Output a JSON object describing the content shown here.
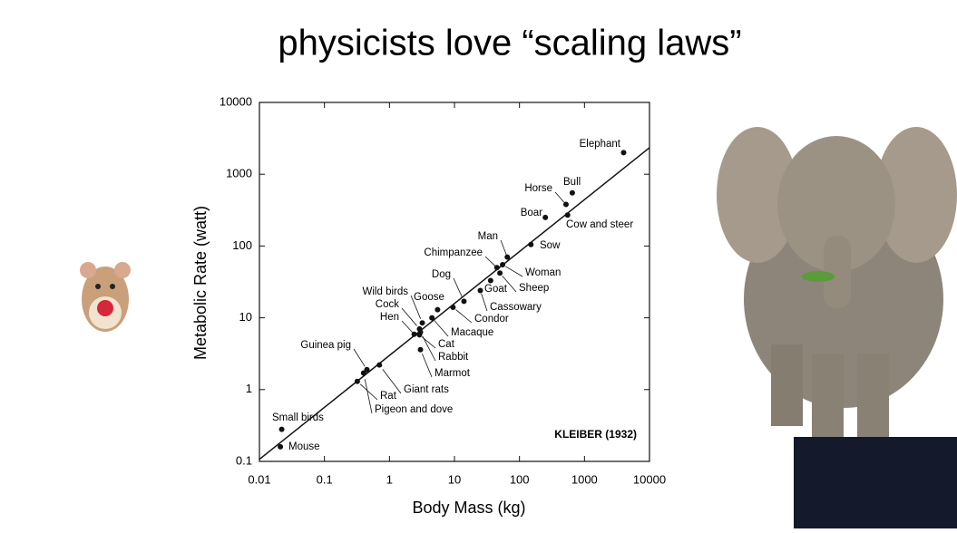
{
  "chart_data": {
    "type": "scatter",
    "title": "physicists love “scaling laws”",
    "x_label": "Body Mass (kg)",
    "y_label": "Metabolic Rate (watt)",
    "annotation": "KLEIBER (1932)",
    "log_x": true,
    "log_y": true,
    "color": "#111111",
    "xlim": [
      0.01,
      10000
    ],
    "ylim": [
      0.1,
      10000
    ],
    "xticks": [
      0.01,
      0.1,
      1,
      10,
      100,
      1000,
      10000
    ],
    "yticks": [
      0.1,
      1,
      10,
      100,
      1000,
      10000
    ],
    "labels": [
      "Elephant",
      "Bull",
      "Horse",
      "Cow and steer",
      "Boar",
      "Sow",
      "Man",
      "Chimpanzee",
      "Woman",
      "Sheep",
      "Goat",
      "Cassowary",
      "Dog",
      "Condor",
      "Goose",
      "Wild birds",
      "Cock",
      "Hen",
      "Macaque",
      "Cat",
      "Rabbit",
      "Marmot",
      "Giant rats",
      "Rat",
      "Pigeon and dove",
      "Guinea pig",
      "Small birds",
      "Mouse"
    ],
    "x": [
      4000,
      650,
      520,
      550,
      250,
      150,
      65,
      45,
      55,
      50,
      36,
      25,
      14,
      9.5,
      5.5,
      3.2,
      2.9,
      2.4,
      4.5,
      2.9,
      3,
      3,
      0.7,
      0.32,
      0.4,
      0.45,
      0.022,
      0.021
    ],
    "values": [
      2000,
      550,
      380,
      270,
      250,
      105,
      70,
      50,
      55,
      42,
      33,
      24,
      17,
      14,
      13,
      8.5,
      7,
      5.9,
      10,
      5.8,
      6.3,
      3.6,
      2.2,
      1.3,
      1.7,
      1.9,
      0.28,
      0.16
    ],
    "fit": {
      "x": [
        0.01,
        10000
      ],
      "values": [
        0.107,
        2340
      ]
    }
  }
}
